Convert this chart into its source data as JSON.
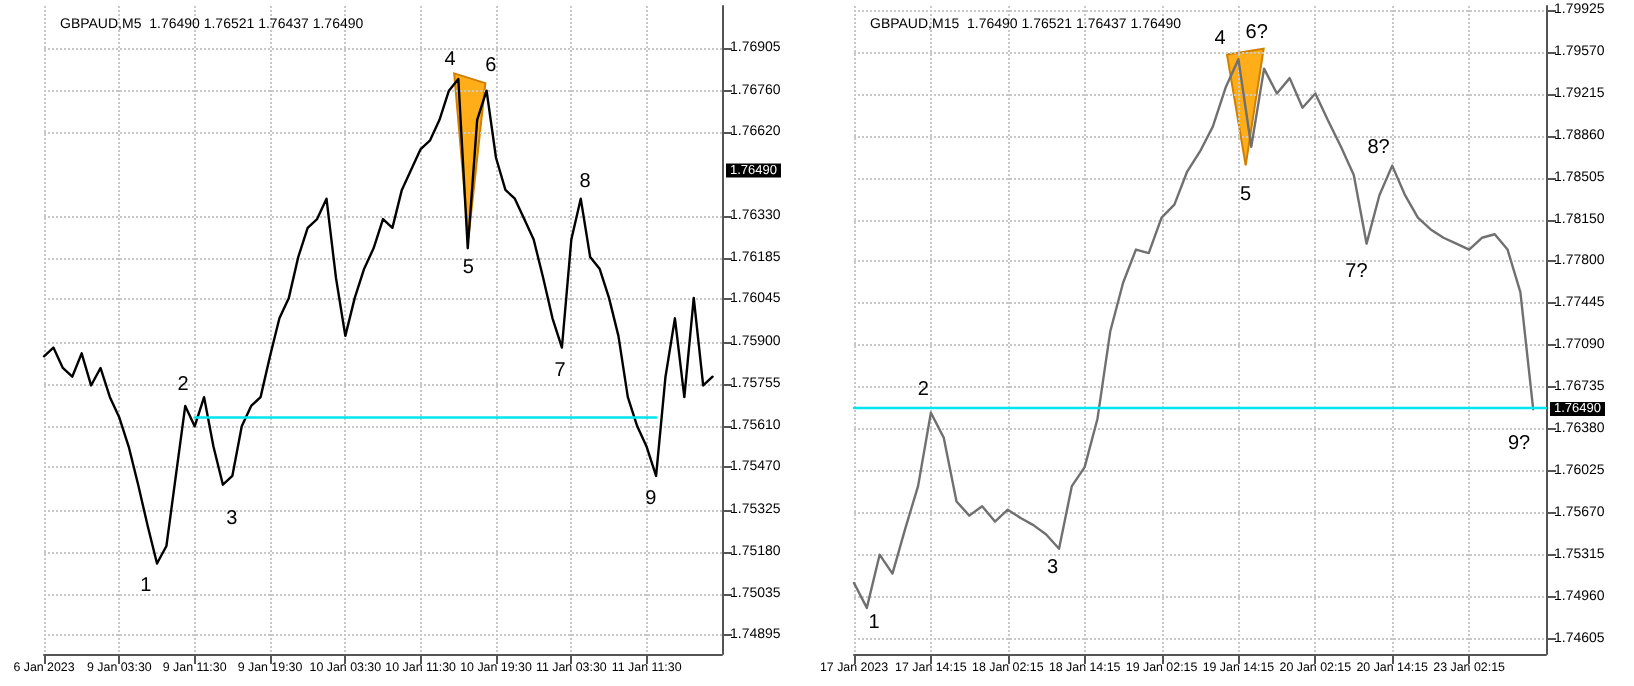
{
  "chart_data": [
    {
      "type": "line",
      "title": "GBPAUD,M5  1.76490 1.76521 1.76437 1.76490",
      "categories": [
        "6 Jan 2023",
        null,
        null,
        null,
        null,
        null,
        null,
        null,
        "9 Jan 03:30",
        null,
        null,
        null,
        null,
        null,
        null,
        null,
        "9 Jan 11:30",
        null,
        null,
        null,
        null,
        null,
        null,
        null,
        "9 Jan 19:30",
        null,
        null,
        null,
        null,
        null,
        null,
        null,
        "10 Jan 03:30",
        null,
        null,
        null,
        null,
        null,
        null,
        null,
        "10 Jan 11:30",
        null,
        null,
        null,
        null,
        null,
        null,
        null,
        "10 Jan 19:30",
        null,
        null,
        null,
        null,
        null,
        null,
        null,
        "11 Jan 03:30",
        null,
        null,
        null,
        null,
        null,
        null,
        null,
        "11 Jan 11:30",
        null,
        null,
        null,
        null,
        null,
        null,
        null,
        null
      ],
      "series": [
        {
          "color": "#000000",
          "values": [
            1.7585,
            1.7588,
            1.7581,
            1.7578,
            1.7586,
            1.7575,
            1.7581,
            1.7571,
            1.7564,
            1.7554,
            1.7541,
            1.7527,
            1.7514,
            1.752,
            1.7544,
            1.7568,
            1.7561,
            1.7571,
            1.7554,
            1.7541,
            1.7544,
            1.7561,
            1.7568,
            1.7571,
            1.7585,
            1.7598,
            1.7605,
            1.7619,
            1.7629,
            1.7632,
            1.7639,
            1.7612,
            1.7592,
            1.7605,
            1.7615,
            1.7622,
            1.7632,
            1.7629,
            1.7642,
            1.7649,
            1.7656,
            1.7659,
            1.7666,
            1.7676,
            1.768,
            1.7622,
            1.7666,
            1.7676,
            1.7653,
            1.7642,
            1.7639,
            1.7632,
            1.7625,
            1.7612,
            1.7598,
            1.7588,
            1.7625,
            1.7639,
            1.7619,
            1.7615,
            1.7605,
            1.7592,
            1.7571,
            1.7561,
            1.7554,
            1.7544,
            1.7578,
            1.7598,
            1.7571,
            1.7605,
            1.7575,
            1.7578,
            null
          ]
        },
        {
          "color": "#00e5ee",
          "values": [
            null,
            null,
            null,
            null,
            null,
            null,
            null,
            null,
            null,
            null,
            null,
            null,
            null,
            null,
            null,
            null,
            1.7564,
            1.7564,
            1.7564,
            1.7564,
            1.7564,
            1.7564,
            1.7564,
            1.7564,
            1.7564,
            1.7564,
            1.7564,
            1.7564,
            1.7564,
            1.7564,
            1.7564,
            1.7564,
            1.7564,
            1.7564,
            1.7564,
            1.7564,
            1.7564,
            1.7564,
            1.7564,
            1.7564,
            1.7564,
            1.7564,
            1.7564,
            1.7564,
            1.7564,
            1.7564,
            1.7564,
            1.7564,
            1.7564,
            1.7564,
            1.7564,
            1.7564,
            1.7564,
            1.7564,
            1.7564,
            1.7564,
            1.7564,
            1.7564,
            1.7564,
            1.7564,
            1.7564,
            1.7564,
            1.7564,
            1.7564,
            1.7564,
            1.7564,
            null,
            null,
            null,
            null,
            null,
            null,
            null
          ]
        }
      ],
      "ylim": [
        1.7483,
        1.7705
      ],
      "yticks": [
        {
          "value": 1.74895,
          "label": "1.74895"
        },
        {
          "value": 1.75035,
          "label": "1.75035"
        },
        {
          "value": 1.7518,
          "label": "1.75180"
        },
        {
          "value": 1.75325,
          "label": "1.75325"
        },
        {
          "value": 1.7547,
          "label": "1.75470"
        },
        {
          "value": 1.7561,
          "label": "1.75610"
        },
        {
          "value": 1.75755,
          "label": "1.75755"
        },
        {
          "value": 1.759,
          "label": "1.75900"
        },
        {
          "value": 1.76045,
          "label": "1.76045"
        },
        {
          "value": 1.76185,
          "label": "1.76185"
        },
        {
          "value": 1.7633,
          "label": "1.76330"
        },
        {
          "value": 1.7662,
          "label": "1.76620"
        },
        {
          "value": 1.7676,
          "label": "1.76760"
        },
        {
          "value": 1.76905,
          "label": "1.76905"
        }
      ],
      "grid": true,
      "annotations": [
        "1",
        "2",
        "3",
        "4",
        "5",
        "6",
        "7",
        "8",
        "9",
        "1.76490"
      ]
    },
    {
      "type": "line",
      "title": "GBPAUD,M15  1.76490 1.76521 1.76437 1.76490",
      "categories": [
        "17 Jan 2023",
        null,
        null,
        null,
        null,
        null,
        "17 Jan 14:15",
        null,
        null,
        null,
        null,
        null,
        "18 Jan 02:15",
        null,
        null,
        null,
        null,
        null,
        "18 Jan 14:15",
        null,
        null,
        null,
        null,
        null,
        "19 Jan 02:15",
        null,
        null,
        null,
        null,
        null,
        "19 Jan 14:15",
        null,
        null,
        null,
        null,
        null,
        "20 Jan 02:15",
        null,
        null,
        null,
        null,
        null,
        "20 Jan 14:15",
        null,
        null,
        null,
        null,
        null,
        "23 Jan 02:15",
        null,
        null,
        null,
        null,
        null,
        null
      ],
      "series": [
        {
          "color": "#707070",
          "values": [
            1.7508,
            1.7487,
            1.7532,
            1.7516,
            1.7554,
            1.759,
            1.7652,
            1.7631,
            1.7577,
            1.7565,
            1.7573,
            1.756,
            1.757,
            1.7563,
            1.7557,
            1.7549,
            1.7537,
            1.759,
            1.7606,
            1.7647,
            1.7721,
            1.7762,
            1.779,
            1.7787,
            1.7817,
            1.7828,
            1.7856,
            1.7873,
            1.7894,
            1.7927,
            1.7951,
            1.7877,
            1.7943,
            1.7922,
            1.7935,
            1.791,
            1.7922,
            1.7899,
            1.7877,
            1.7853,
            1.7795,
            1.7836,
            1.7861,
            1.7836,
            1.7817,
            1.7807,
            1.78,
            1.7795,
            1.779,
            1.78,
            1.7803,
            1.779,
            1.7754,
            1.7655,
            null
          ]
        },
        {
          "color": "#00e5ee",
          "values": [
            1.7656,
            1.7656,
            1.7656,
            1.7656,
            1.7656,
            1.7656,
            1.7656,
            1.7656,
            1.7656,
            1.7656,
            1.7656,
            1.7656,
            1.7656,
            1.7656,
            1.7656,
            1.7656,
            1.7656,
            1.7656,
            1.7656,
            1.7656,
            1.7656,
            1.7656,
            1.7656,
            1.7656,
            1.7656,
            1.7656,
            1.7656,
            1.7656,
            1.7656,
            1.7656,
            1.7656,
            1.7656,
            1.7656,
            1.7656,
            1.7656,
            1.7656,
            1.7656,
            1.7656,
            1.7656,
            1.7656,
            1.7656,
            1.7656,
            1.7656,
            1.7656,
            1.7656,
            1.7656,
            1.7656,
            1.7656,
            1.7656,
            1.7656,
            1.7656,
            1.7656,
            1.7656,
            1.7656,
            1.7656
          ]
        }
      ],
      "ylim": [
        1.7448,
        1.7996
      ],
      "yticks": [
        {
          "value": 1.74605,
          "label": "1.74605"
        },
        {
          "value": 1.7496,
          "label": "1.74960"
        },
        {
          "value": 1.75315,
          "label": "1.75315"
        },
        {
          "value": 1.7567,
          "label": "1.75670"
        },
        {
          "value": 1.76025,
          "label": "1.76025"
        },
        {
          "value": 1.7638,
          "label": "1.76380"
        },
        {
          "value": 1.76735,
          "label": "1.76735"
        },
        {
          "value": 1.7709,
          "label": "1.77090"
        },
        {
          "value": 1.77445,
          "label": "1.77445"
        },
        {
          "value": 1.778,
          "label": "1.77800"
        },
        {
          "value": 1.7815,
          "label": "1.78150"
        },
        {
          "value": 1.78505,
          "label": "1.78505"
        },
        {
          "value": 1.7886,
          "label": "1.78860"
        },
        {
          "value": 1.79215,
          "label": "1.79215"
        },
        {
          "value": 1.7957,
          "label": "1.79570"
        },
        {
          "value": 1.79925,
          "label": "1.79925"
        }
      ],
      "grid": true,
      "annotations": [
        "1",
        "2",
        "3",
        "4",
        "5",
        "6?",
        "7?",
        "8?",
        "9?",
        "1.76490"
      ]
    }
  ]
}
